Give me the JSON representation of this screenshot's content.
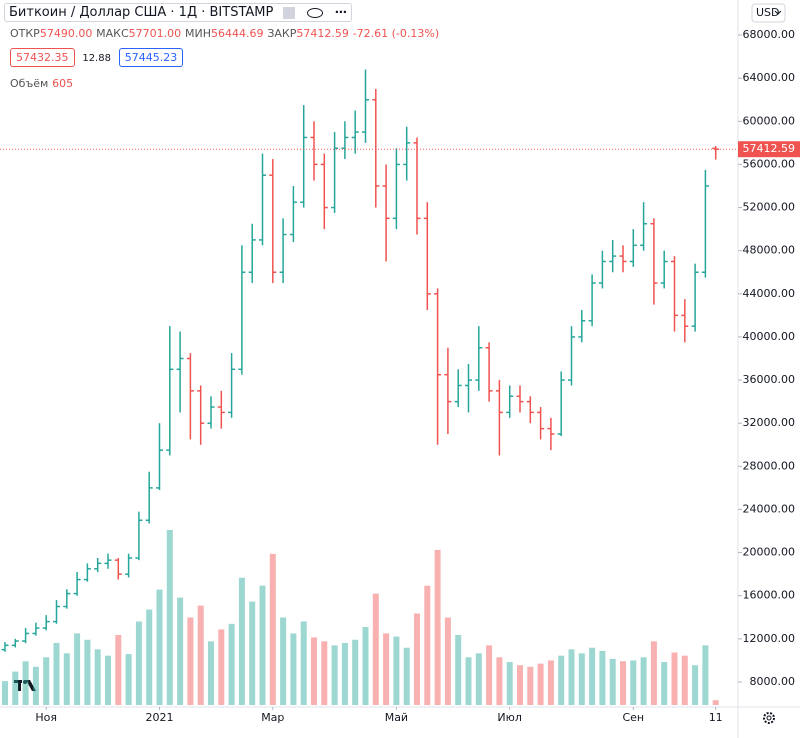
{
  "chart_data": {
    "type": "ohlc",
    "title": "Биткоин / Доллар США · 1Д · BITSTAMP",
    "currency": "USD",
    "categories": [
      null,
      null,
      null,
      null,
      "Ноя",
      null,
      null,
      null,
      null,
      null,
      null,
      null,
      null,
      null,
      null,
      "2021",
      null,
      null,
      null,
      null,
      null,
      null,
      null,
      null,
      null,
      null,
      "Мар",
      null,
      null,
      null,
      null,
      null,
      null,
      null,
      null,
      null,
      null,
      null,
      "Май",
      null,
      null,
      null,
      null,
      null,
      null,
      null,
      null,
      null,
      null,
      "Июл",
      null,
      null,
      null,
      null,
      null,
      null,
      null,
      null,
      null,
      null,
      null,
      "Сен",
      null,
      null,
      null,
      null,
      null,
      null,
      null,
      "11"
    ],
    "open": [
      11000,
      11400,
      11800,
      12500,
      13000,
      13600,
      15000,
      16200,
      17500,
      18500,
      19000,
      19300,
      18000,
      19500,
      23000,
      26000,
      29500,
      37000,
      38000,
      35000,
      32000,
      33500,
      33000,
      37000,
      46000,
      49000,
      55000,
      46000,
      49500,
      52500,
      58500,
      56000,
      52000,
      57500,
      58500,
      59000,
      62000,
      54000,
      51000,
      56000,
      58000,
      51000,
      44000,
      36500,
      34000,
      35500,
      36000,
      39000,
      35000,
      33000,
      34500,
      34000,
      33000,
      31500,
      31000,
      36000,
      40000,
      41500,
      45000,
      47000,
      47500,
      47000,
      48500,
      50500,
      45000,
      47000,
      42000,
      41000,
      46000,
      57490
    ],
    "high": [
      11700,
      12000,
      13000,
      13500,
      14200,
      15600,
      16600,
      18200,
      19000,
      19500,
      19900,
      19500,
      19900,
      23800,
      27500,
      32000,
      41000,
      40500,
      38500,
      35500,
      34500,
      35000,
      38500,
      48500,
      50500,
      57000,
      56500,
      51000,
      54000,
      61500,
      60000,
      57000,
      59000,
      60000,
      61000,
      64800,
      63000,
      56000,
      57500,
      59500,
      58500,
      52500,
      44500,
      39000,
      37000,
      37500,
      41000,
      39500,
      36000,
      35500,
      35500,
      34500,
      33500,
      32500,
      36800,
      41000,
      42500,
      45800,
      48000,
      49000,
      48500,
      50000,
      52500,
      51000,
      48000,
      47500,
      43500,
      46800,
      55500,
      57701
    ],
    "low": [
      10800,
      11200,
      11600,
      12300,
      12800,
      13400,
      14800,
      16000,
      17300,
      18200,
      18500,
      17500,
      17700,
      19300,
      22700,
      25800,
      29000,
      33000,
      30500,
      30000,
      31500,
      31500,
      32500,
      36500,
      45000,
      48500,
      45000,
      45000,
      48800,
      52000,
      54500,
      50000,
      51500,
      56500,
      57000,
      58000,
      52000,
      47000,
      50000,
      54500,
      49500,
      42500,
      30000,
      31000,
      33500,
      33000,
      35000,
      34000,
      29000,
      32500,
      33000,
      32000,
      30500,
      29500,
      30800,
      35500,
      39500,
      41000,
      44500,
      46000,
      46000,
      46500,
      48000,
      43000,
      44500,
      40500,
      39500,
      40500,
      45500,
      56444.69
    ],
    "close": [
      11400,
      11800,
      12500,
      13000,
      13600,
      15000,
      16200,
      17500,
      18500,
      19000,
      19300,
      18000,
      19500,
      23000,
      26000,
      29500,
      37000,
      38000,
      35000,
      32000,
      33500,
      33000,
      37000,
      46000,
      49000,
      55000,
      46000,
      49500,
      52500,
      58500,
      56000,
      52000,
      57500,
      58500,
      59000,
      62000,
      54000,
      51000,
      56000,
      58000,
      51000,
      44000,
      36500,
      34000,
      35500,
      36000,
      39000,
      35000,
      33000,
      34500,
      34000,
      33000,
      31500,
      31000,
      36000,
      40000,
      41500,
      45000,
      47000,
      47500,
      47000,
      48500,
      50500,
      45000,
      47000,
      42000,
      41000,
      46000,
      54000,
      57412.59
    ],
    "up_color": "#26a69a",
    "down_color": "#ef5350",
    "volume": {
      "name": "Объём",
      "values": [
        3000,
        4200,
        5500,
        4800,
        6000,
        7800,
        6500,
        9000,
        8200,
        7000,
        6200,
        8800,
        6400,
        10500,
        12000,
        14500,
        22000,
        13500,
        11000,
        12500,
        8000,
        9500,
        10200,
        16000,
        13000,
        15000,
        19000,
        11000,
        9000,
        10500,
        8500,
        8000,
        7500,
        7800,
        8200,
        9800,
        14000,
        9000,
        8600,
        7200,
        11500,
        15000,
        19500,
        11000,
        8800,
        6000,
        6500,
        7500,
        6000,
        5400,
        5000,
        4800,
        5200,
        5600,
        6200,
        7000,
        6500,
        7200,
        6800,
        5800,
        5500,
        5600,
        6000,
        8000,
        5400,
        6600,
        6200,
        5000,
        7500,
        605
      ]
    },
    "ylim": [
      5680,
      71250
    ],
    "yticks": [
      {
        "value": 8000,
        "label": "8000.00"
      },
      {
        "value": 12000,
        "label": "12000.00"
      },
      {
        "value": 16000,
        "label": "16000.00"
      },
      {
        "value": 20000,
        "label": "20000.00"
      },
      {
        "value": 24000,
        "label": "24000.00"
      },
      {
        "value": 28000,
        "label": "28000.00"
      },
      {
        "value": 32000,
        "label": "32000.00"
      },
      {
        "value": 36000,
        "label": "36000.00"
      },
      {
        "value": 40000,
        "label": "40000.00"
      },
      {
        "value": 44000,
        "label": "44000.00"
      },
      {
        "value": 48000,
        "label": "48000.00"
      },
      {
        "value": 52000,
        "label": "52000.00"
      },
      {
        "value": 56000,
        "label": "56000.00"
      },
      {
        "value": 60000,
        "label": "60000.00"
      },
      {
        "value": 64000,
        "label": "64000.00"
      },
      {
        "value": 68000,
        "label": "68000.00"
      }
    ],
    "last_price": {
      "value": 57412.59,
      "label": "57412.59"
    },
    "legend": {
      "open_label": "ОТКР",
      "open": "57490.00",
      "high_label": "МАКС",
      "high": "57701.00",
      "low_label": "МИН",
      "low": "56444.69",
      "close_label": "ЗАКР",
      "close": "57412.59",
      "change": "-72.61 (-0.13%)",
      "bid": "57432.35",
      "spread": "12.88",
      "ask": "57445.23"
    }
  }
}
